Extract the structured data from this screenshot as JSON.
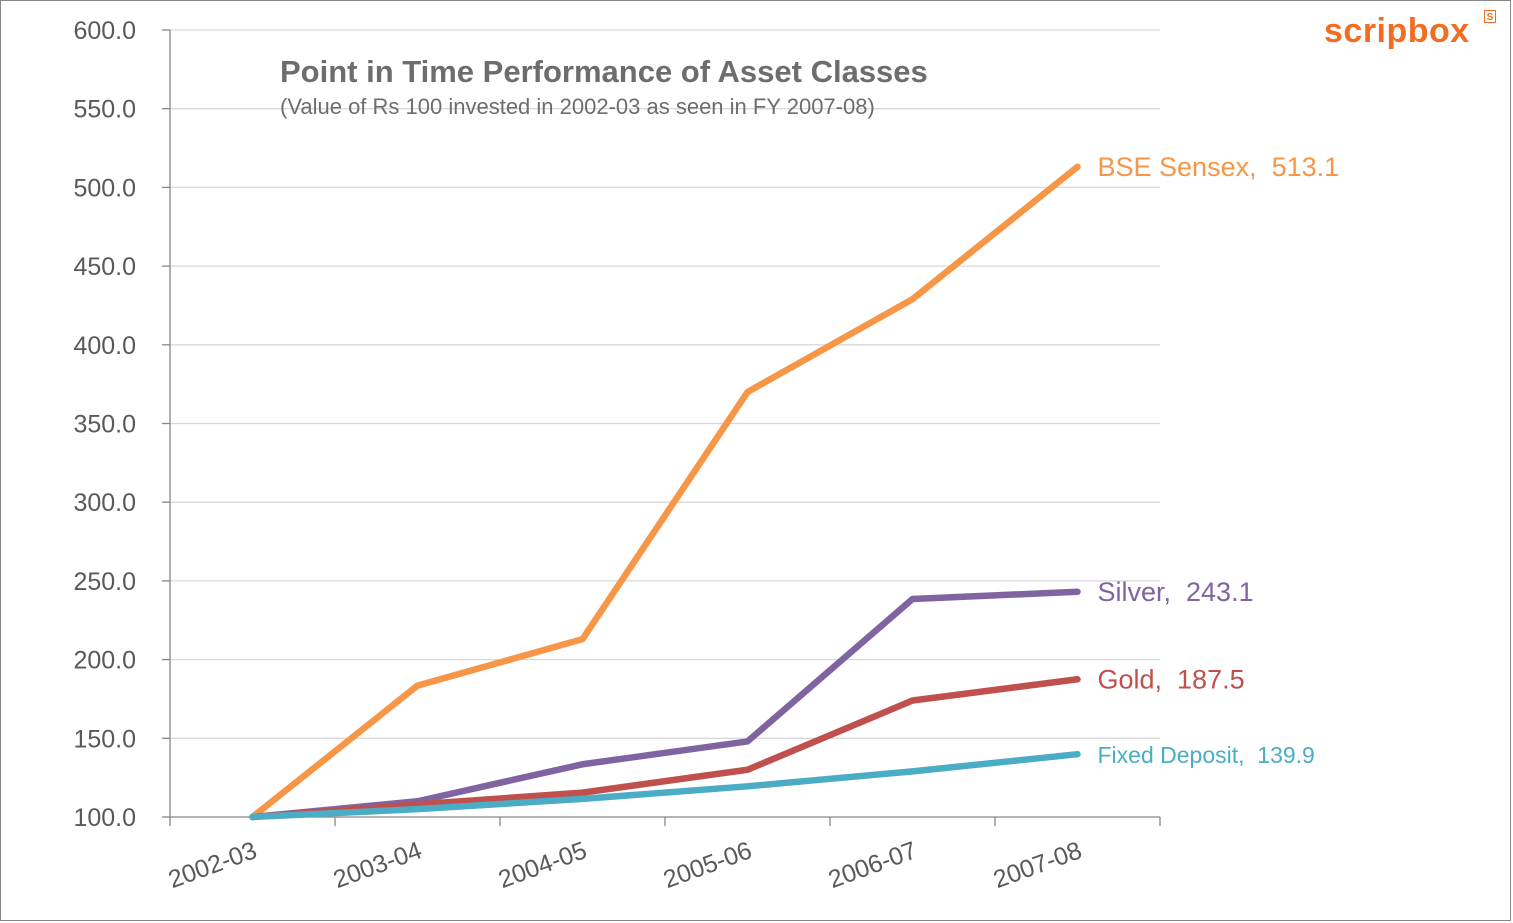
{
  "brand": {
    "logo_text": "scripbox",
    "badge_text": "S",
    "color": "#f26d21"
  },
  "chart_data": {
    "type": "line",
    "title": "Point in Time Performance of Asset Classes",
    "subtitle": "(Value of Rs 100 invested in 2002-03 as seen in FY 2007-08)",
    "xlabel": "",
    "ylabel": "",
    "categories": [
      "2002-03",
      "2003-04",
      "2004-05",
      "2005-06",
      "2006-07",
      "2007-08"
    ],
    "ylim": [
      100,
      600
    ],
    "yticks": [
      "100.0",
      "150.0",
      "200.0",
      "250.0",
      "300.0",
      "350.0",
      "400.0",
      "450.0",
      "500.0",
      "550.0",
      "600.0"
    ],
    "grid": true,
    "series": [
      {
        "name": "BSE Sensex",
        "values": [
          100,
          183.5,
          213,
          370,
          429,
          513.1
        ],
        "color": "#f79646",
        "end_label": "BSE Sensex,  513.1"
      },
      {
        "name": "Silver",
        "values": [
          100,
          110,
          133.5,
          148,
          238.5,
          243.1
        ],
        "color": "#8064a2",
        "end_label": "Silver,  243.1"
      },
      {
        "name": "Gold",
        "values": [
          100,
          108,
          115.5,
          130,
          174,
          187.5
        ],
        "color": "#c0504d",
        "end_label": "Gold,  187.5"
      },
      {
        "name": "Fixed Deposit",
        "values": [
          100,
          105,
          111.5,
          119.5,
          129,
          139.9
        ],
        "color": "#4bacc6",
        "end_label": "Fixed Deposit,  139.9"
      }
    ]
  }
}
